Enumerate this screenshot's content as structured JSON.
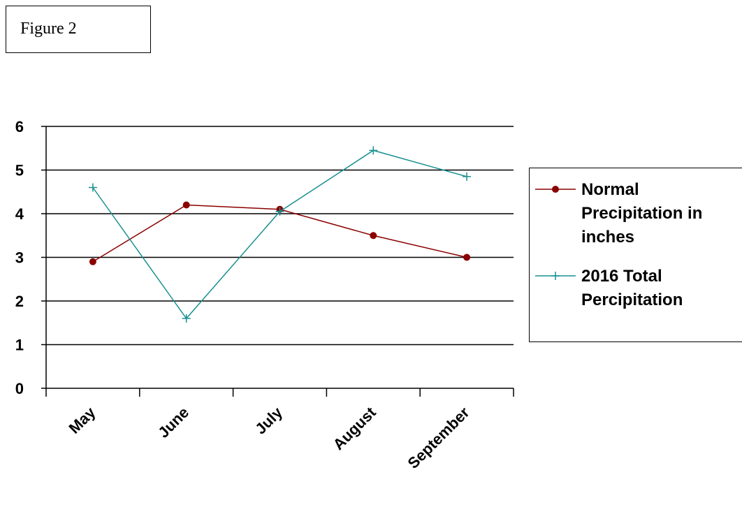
{
  "figure_label": "Figure 2",
  "chart_data": {
    "type": "line",
    "title": "",
    "xlabel": "",
    "ylabel": "",
    "categories": [
      "May",
      "June",
      "July",
      "August",
      "September"
    ],
    "ylim": [
      0,
      6
    ],
    "yticks": [
      0,
      1,
      2,
      3,
      4,
      5,
      6
    ],
    "grid": "horizontal",
    "legend_position": "right",
    "series": [
      {
        "name": "Normal Precipitation in inches",
        "legend_lines": [
          "Normal",
          "Precipitation in",
          "inches"
        ],
        "values": [
          2.9,
          4.2,
          4.1,
          3.5,
          3.0
        ],
        "color": "#8b0000",
        "marker": "circle"
      },
      {
        "name": "2016 Total Percipitation",
        "legend_lines": [
          "2016 Total",
          "Percipitation"
        ],
        "values": [
          4.6,
          1.6,
          4.05,
          5.45,
          4.85
        ],
        "color": "#1a9090",
        "marker": "plus"
      }
    ]
  }
}
